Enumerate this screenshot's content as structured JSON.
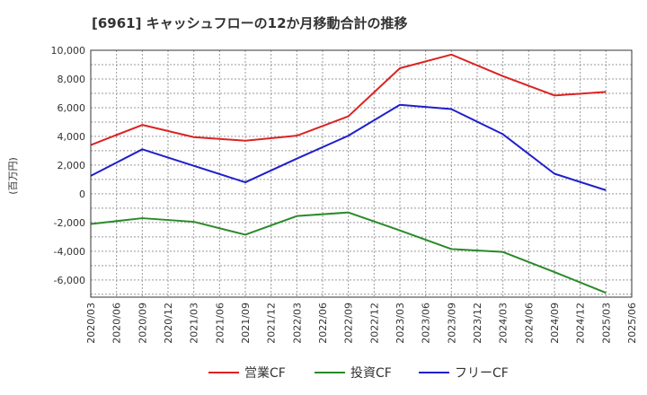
{
  "chart_data": {
    "type": "line",
    "title": "[6961]  キャッシュフローの12か月移動合計の推移",
    "ylabel": "(百万円)",
    "xlabel": "",
    "ylim": [
      -7200,
      10000
    ],
    "yticks": [
      10000,
      8000,
      6000,
      4000,
      2000,
      0,
      -2000,
      -4000,
      -6000
    ],
    "ytick_labels": [
      "10,000",
      "8,000",
      "6,000",
      "4,000",
      "2,000",
      "0",
      "-2,000",
      "-4,000",
      "-6,000"
    ],
    "x_categories": [
      "2020/03",
      "2020/06",
      "2020/09",
      "2020/12",
      "2021/03",
      "2021/06",
      "2021/09",
      "2021/12",
      "2022/03",
      "2022/06",
      "2022/09",
      "2022/12",
      "2023/03",
      "2023/06",
      "2023/09",
      "2023/12",
      "2024/03",
      "2024/06",
      "2024/09",
      "2024/12",
      "2025/03",
      "2025/06"
    ],
    "point_categories": [
      "2020/03",
      "2020/09",
      "2021/03",
      "2021/09",
      "2022/03",
      "2022/09",
      "2023/03",
      "2023/09",
      "2024/03",
      "2024/09",
      "2025/03"
    ],
    "series": [
      {
        "name": "営業CF",
        "color": "#dd2222",
        "values": [
          3400,
          4800,
          3950,
          3700,
          4050,
          5400,
          8750,
          9700,
          8200,
          6850,
          7100
        ]
      },
      {
        "name": "投資CF",
        "color": "#2a8a2a",
        "values": [
          -2100,
          -1700,
          -1950,
          -2850,
          -1550,
          -1300,
          -2550,
          -3850,
          -4050,
          -5450,
          -6900
        ]
      },
      {
        "name": "フリーCF",
        "color": "#1f1fcc",
        "values": [
          1250,
          3100,
          1950,
          800,
          2450,
          4050,
          6200,
          5900,
          4150,
          1400,
          250
        ]
      }
    ],
    "grid": true,
    "legend_position": "bottom"
  }
}
